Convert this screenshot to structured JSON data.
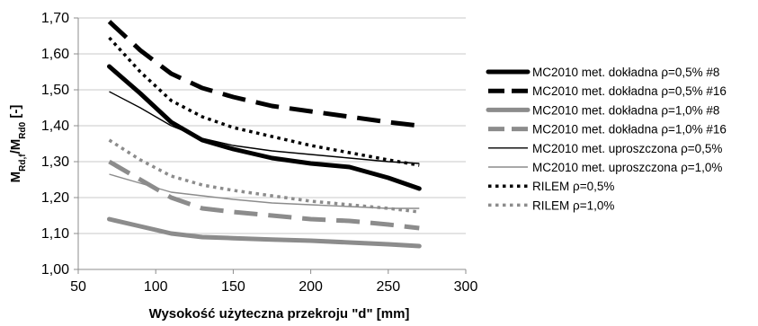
{
  "chart_data": {
    "type": "line",
    "title": "",
    "xlabel": "Wysokość użyteczna przekroju \"d\" [mm]",
    "ylabel_main": "M",
    "ylabel_sub1": "Rd,f",
    "ylabel_mid": "/M",
    "ylabel_sub2": "Rd0",
    "ylabel_tail": " [-]",
    "xlim": [
      50,
      300
    ],
    "ylim": [
      1.0,
      1.7
    ],
    "x_ticks": [
      "50",
      "100",
      "150",
      "200",
      "250",
      "300"
    ],
    "y_ticks": [
      "1,00",
      "1,10",
      "1,20",
      "1,30",
      "1,40",
      "1,50",
      "1,60",
      "1,70"
    ],
    "grid": "horizontal",
    "legend_position": "right",
    "series": [
      {
        "name": "MC2010 met. dokładna ρ=0,5% #8",
        "color": "#000000",
        "style": "thick-solid",
        "x": [
          70,
          90,
          110,
          130,
          150,
          175,
          200,
          225,
          250,
          270
        ],
        "y": [
          1.565,
          1.49,
          1.41,
          1.36,
          1.335,
          1.31,
          1.295,
          1.285,
          1.255,
          1.225
        ]
      },
      {
        "name": "MC2010 met. dokładna ρ=0,5% #16",
        "color": "#000000",
        "style": "thick-dash",
        "x": [
          70,
          90,
          110,
          130,
          150,
          175,
          200,
          225,
          250,
          270
        ],
        "y": [
          1.69,
          1.61,
          1.545,
          1.505,
          1.48,
          1.455,
          1.44,
          1.425,
          1.41,
          1.4
        ]
      },
      {
        "name": "MC2010 met. dokładna ρ=1,0% #8",
        "color": "#8c8c8c",
        "style": "thick-solid",
        "x": [
          70,
          90,
          110,
          130,
          150,
          175,
          200,
          225,
          250,
          270
        ],
        "y": [
          1.14,
          1.12,
          1.1,
          1.09,
          1.087,
          1.083,
          1.08,
          1.075,
          1.07,
          1.065
        ]
      },
      {
        "name": "MC2010 met. dokładna ρ=1,0% #16",
        "color": "#8c8c8c",
        "style": "thick-dash",
        "x": [
          70,
          90,
          110,
          130,
          150,
          175,
          200,
          225,
          250,
          270
        ],
        "y": [
          1.3,
          1.25,
          1.2,
          1.17,
          1.16,
          1.15,
          1.14,
          1.135,
          1.125,
          1.115
        ]
      },
      {
        "name": "MC2010 met. uproszczona ρ=0,5%",
        "color": "#000000",
        "style": "thin-solid",
        "x": [
          70,
          90,
          110,
          130,
          150,
          175,
          200,
          225,
          250,
          270
        ],
        "y": [
          1.495,
          1.45,
          1.4,
          1.365,
          1.345,
          1.33,
          1.32,
          1.31,
          1.3,
          1.295
        ]
      },
      {
        "name": "MC2010 met. uproszczona ρ=1,0%",
        "color": "#8c8c8c",
        "style": "thin-solid",
        "x": [
          70,
          90,
          110,
          130,
          150,
          175,
          200,
          225,
          250,
          270
        ],
        "y": [
          1.265,
          1.24,
          1.215,
          1.205,
          1.195,
          1.185,
          1.18,
          1.175,
          1.17,
          1.17
        ]
      },
      {
        "name": "RILEM ρ=0,5%",
        "color": "#000000",
        "style": "dot",
        "x": [
          70,
          90,
          110,
          130,
          150,
          175,
          200,
          225,
          250,
          270
        ],
        "y": [
          1.645,
          1.55,
          1.47,
          1.425,
          1.395,
          1.37,
          1.345,
          1.325,
          1.305,
          1.29
        ]
      },
      {
        "name": "RILEM ρ=1,0%",
        "color": "#8c8c8c",
        "style": "dot",
        "x": [
          70,
          90,
          110,
          130,
          150,
          175,
          200,
          225,
          250,
          270
        ],
        "y": [
          1.36,
          1.305,
          1.26,
          1.235,
          1.22,
          1.205,
          1.19,
          1.18,
          1.17,
          1.16
        ]
      }
    ]
  }
}
